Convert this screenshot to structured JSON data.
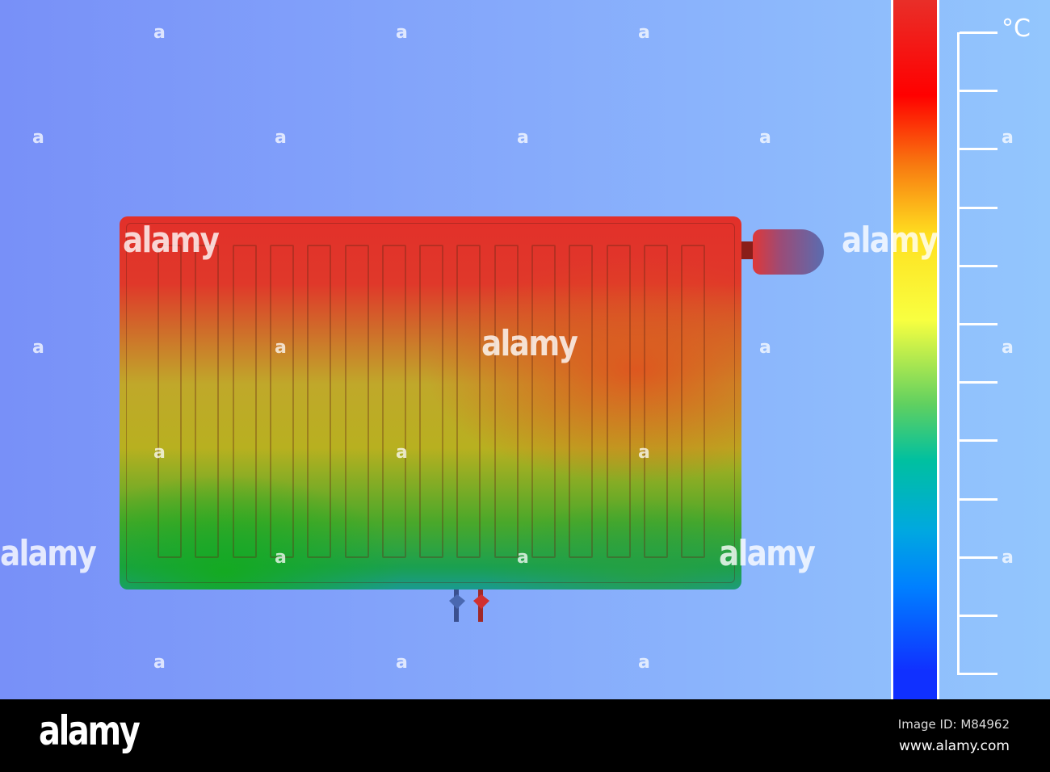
{
  "watermark": {
    "text": "alamy",
    "small": "a"
  },
  "scale": {
    "unit": "°C",
    "tick_count": 12,
    "gradient": [
      "#1030ff",
      "#0080ff",
      "#00a8e0",
      "#00c0a0",
      "#60d060",
      "#f8ff40",
      "#ffe020",
      "#f87a10",
      "#ff0000",
      "#e8302a"
    ]
  },
  "radiator": {
    "fin_count": 15
  },
  "footer": {
    "logo": "alamy",
    "image_id": "Image ID: M84962",
    "url": "www.alamy.com"
  }
}
